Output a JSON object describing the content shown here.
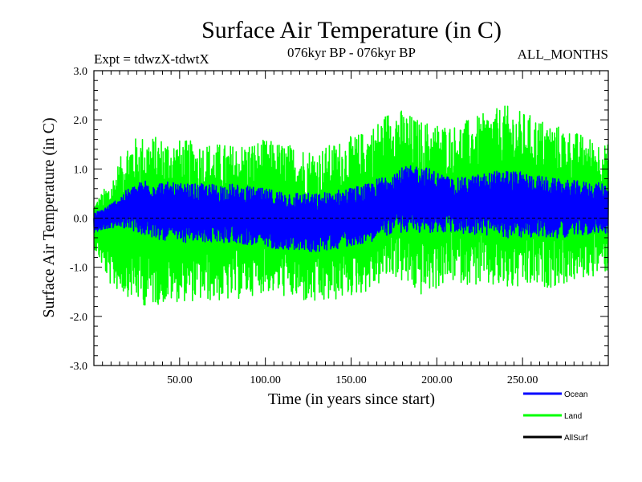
{
  "chart_data": {
    "type": "line",
    "title": "Surface Air Temperature (in C)",
    "subtitle": "076kyr BP - 076kyr BP",
    "experiment": "Expt = tdwzX-tdwtX",
    "season": "ALL_MONTHS",
    "xlabel": "Time (in years since start)",
    "ylabel": "Surface Air Temperature (in C)",
    "xlim": [
      0,
      300
    ],
    "ylim": [
      -3.0,
      3.0
    ],
    "x_ticks": [
      50,
      100,
      150,
      200,
      250
    ],
    "x_tick_labels": [
      "50.00",
      "100.00",
      "150.00",
      "200.00",
      "250.00"
    ],
    "y_ticks": [
      -3.0,
      -2.0,
      -1.0,
      0.0,
      1.0,
      2.0,
      3.0
    ],
    "y_tick_labels": [
      "-3.0",
      "-2.0",
      "-1.0",
      "0.0",
      "1.0",
      "2.0",
      "3.0"
    ],
    "zero_line": true,
    "series": [
      {
        "name": "Land",
        "color": "#00ff00",
        "description": "monthly anomaly, approx envelope",
        "x": [
          0,
          10,
          20,
          30,
          50,
          80,
          100,
          130,
          160,
          175,
          190,
          210,
          240,
          270,
          300
        ],
        "upper": [
          0.3,
          0.8,
          1.6,
          1.7,
          1.6,
          1.5,
          1.6,
          1.4,
          1.8,
          2.3,
          2.0,
          1.9,
          2.3,
          1.9,
          1.5
        ],
        "lower": [
          -0.6,
          -1.4,
          -1.6,
          -1.8,
          -1.7,
          -1.7,
          -1.5,
          -1.8,
          -1.5,
          -1.2,
          -1.6,
          -1.3,
          -1.5,
          -1.4,
          -1.1
        ]
      },
      {
        "name": "Ocean",
        "color": "#0000ff",
        "description": "monthly anomaly, approx envelope",
        "x": [
          0,
          10,
          20,
          30,
          50,
          80,
          100,
          130,
          160,
          175,
          190,
          210,
          240,
          270,
          300
        ],
        "upper": [
          0.1,
          0.3,
          0.6,
          0.8,
          0.7,
          0.7,
          0.6,
          0.5,
          0.7,
          1.0,
          1.1,
          0.8,
          1.0,
          0.8,
          0.7
        ],
        "lower": [
          -0.3,
          -0.2,
          -0.2,
          -0.4,
          -0.5,
          -0.5,
          -0.6,
          -0.7,
          -0.5,
          -0.3,
          -0.3,
          -0.3,
          -0.4,
          -0.4,
          -0.3
        ]
      },
      {
        "name": "AllSurf",
        "color": "#000000",
        "description": "legend entry only",
        "x": [],
        "upper": [],
        "lower": []
      }
    ],
    "legend": [
      {
        "label": "Ocean",
        "color": "#0000ff"
      },
      {
        "label": "Land",
        "color": "#00ff00"
      },
      {
        "label": "AllSurf",
        "color": "#000000"
      }
    ],
    "legend_position": "bottom-right"
  }
}
